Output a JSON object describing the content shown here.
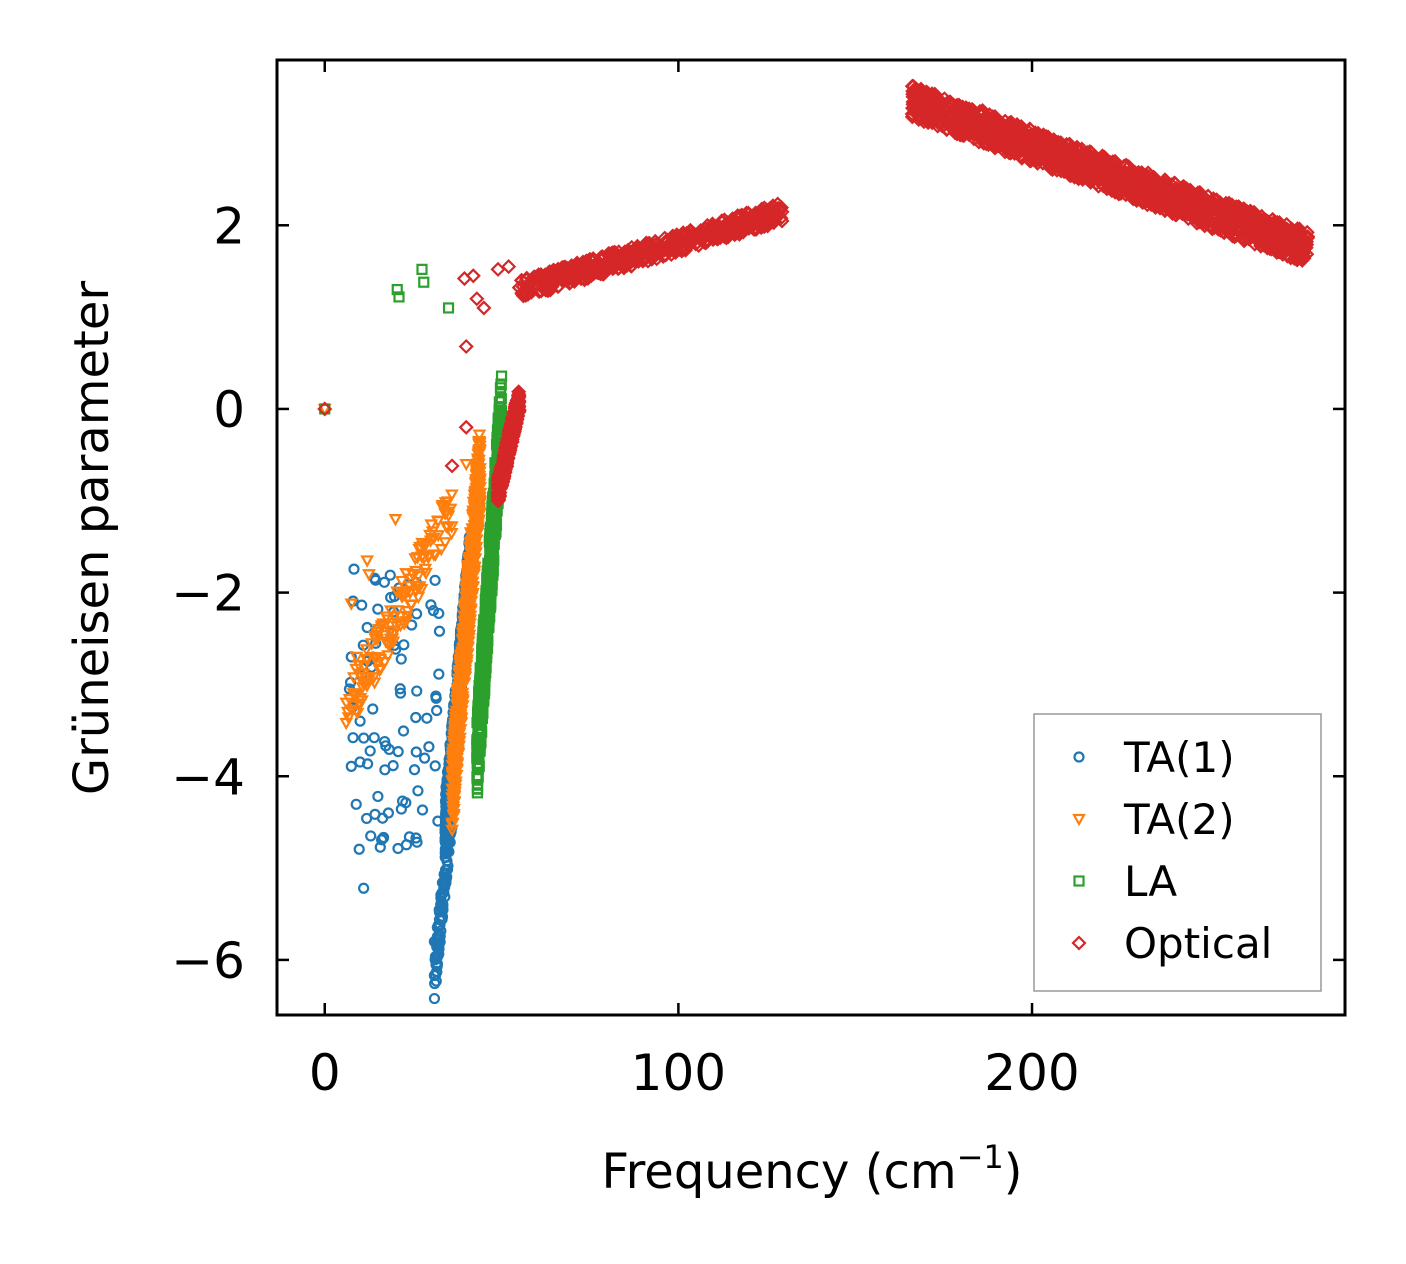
{
  "chart_data": {
    "type": "scatter",
    "xlabel": "Frequency (cm",
    "xlabel_superscript": "−1",
    "xlabel_suffix": ")",
    "ylabel": "Grüneisen parameter",
    "xlim": [
      -13.5,
      288.5
    ],
    "ylim": [
      -6.6,
      3.8
    ],
    "x_ticks": [
      0,
      100,
      200
    ],
    "x_tick_labels": [
      "0",
      "100",
      "200"
    ],
    "y_ticks": [
      -6,
      -4,
      -2,
      0,
      2
    ],
    "y_tick_labels": [
      "−6",
      "−4",
      "−2",
      "0",
      "2"
    ],
    "legend_position": "bottom-right",
    "series": [
      {
        "name": "TA(1)",
        "marker": "circle",
        "color": "#1f77b4",
        "clusters": [
          {
            "x_range": [
              34,
              41
            ],
            "y_range": [
              -4.6,
              -1.7
            ],
            "n": 700,
            "trend": "increasing"
          },
          {
            "x_range": [
              31,
              36
            ],
            "y_range": [
              -6.2,
              -4.3
            ],
            "n": 120,
            "trend": "increasing"
          },
          {
            "x_range": [
              7,
              33
            ],
            "y_range": [
              -4.8,
              -1.7
            ],
            "n": 80,
            "trend": "none"
          }
        ],
        "points": [
          [
            0,
            0
          ],
          [
            7,
            -3.05
          ],
          [
            7.5,
            -2.7
          ],
          [
            8,
            -3.58
          ],
          [
            10,
            -3.4
          ],
          [
            11,
            -5.22
          ],
          [
            12,
            -2.38
          ],
          [
            13,
            -4.65
          ],
          [
            14,
            -3.58
          ],
          [
            15,
            -2.18
          ],
          [
            17,
            -3.93
          ],
          [
            18,
            -4.4
          ],
          [
            19,
            -2.43
          ],
          [
            21,
            -1.95
          ],
          [
            22,
            -4.27
          ],
          [
            31,
            -6.17
          ],
          [
            31,
            -5.8
          ]
        ]
      },
      {
        "name": "TA(2)",
        "marker": "triangle-down",
        "color": "#ff7f0e",
        "clusters": [
          {
            "x_range": [
              36,
              44
            ],
            "y_range": [
              -4.2,
              -0.6
            ],
            "n": 700,
            "trend": "increasing"
          },
          {
            "x_range": [
              6,
              36
            ],
            "y_range": [
              -3.3,
              -1.1
            ],
            "n": 140,
            "trend": "increasing"
          }
        ],
        "points": [
          [
            0,
            0
          ],
          [
            6.5,
            -3.3
          ],
          [
            7.5,
            -2.12
          ],
          [
            9,
            -2.7
          ],
          [
            12,
            -1.65
          ],
          [
            12.5,
            -1.8
          ],
          [
            20,
            -1.2
          ],
          [
            40,
            -0.6
          ]
        ]
      },
      {
        "name": "LA",
        "marker": "square",
        "color": "#2ca02c",
        "clusters": [
          {
            "x_range": [
              43,
              50
            ],
            "y_range": [
              -3.8,
              -0.05
            ],
            "n": 650,
            "trend": "increasing"
          }
        ],
        "points": [
          [
            0,
            0
          ],
          [
            20.5,
            1.3
          ],
          [
            21,
            1.22
          ],
          [
            27.5,
            1.52
          ],
          [
            28,
            1.38
          ],
          [
            35,
            1.1
          ]
        ]
      },
      {
        "name": "Optical",
        "marker": "diamond",
        "color": "#d62728",
        "clusters": [
          {
            "x_range": [
              49,
              55
            ],
            "y_range": [
              -0.9,
              0.1
            ],
            "n": 450,
            "trend": "increasing"
          },
          {
            "x_range": [
              55,
              130
            ],
            "y_range": [
              1.3,
              2.15
            ],
            "n": 520,
            "trend": "increasing"
          },
          {
            "x_range": [
              166,
              278
            ],
            "y_range": [
              1.75,
              3.35
            ],
            "n": 1500,
            "trend": "decreasing"
          }
        ],
        "points": [
          [
            0,
            0
          ],
          [
            40,
            0.68
          ],
          [
            40,
            -0.2
          ],
          [
            36,
            -0.62
          ],
          [
            39.5,
            1.42
          ],
          [
            42,
            1.45
          ],
          [
            43,
            1.2
          ],
          [
            45,
            1.1
          ],
          [
            49,
            1.52
          ],
          [
            52,
            1.55
          ],
          [
            186,
            3.25
          ],
          [
            190,
            3.15
          ]
        ]
      }
    ]
  }
}
